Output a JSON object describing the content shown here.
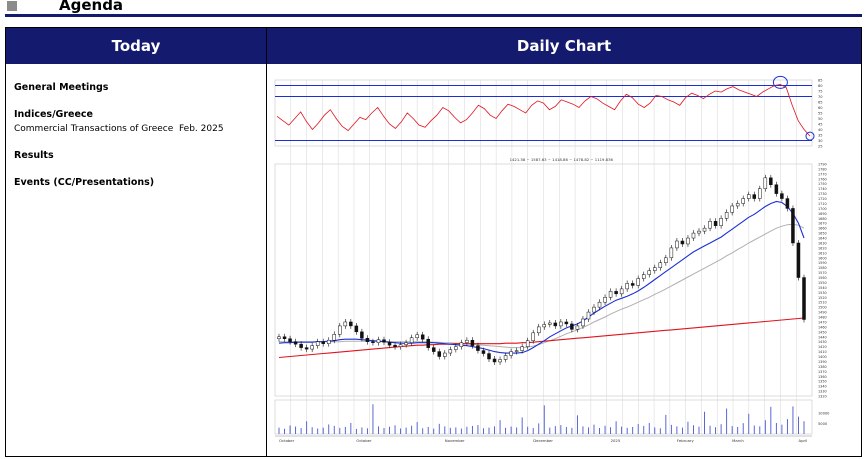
{
  "header": {
    "title": "Agenda"
  },
  "columns": {
    "left": "Today",
    "right": "Daily Chart"
  },
  "agenda": {
    "general_meetings": "General Meetings",
    "indices": "Indices/Greece",
    "indices_item": {
      "label": "Commercial Transactions of Greece",
      "date": "Feb. 2025"
    },
    "results": "Results",
    "events": "Events (CC/Presentations)"
  },
  "colors": {
    "navy": "#141a6e",
    "rsi": "#e0141e",
    "ma_short": "#1a2fd6",
    "ma_mid": "#b0b0b0",
    "ma_long": "#e0141e",
    "volume": "#4a55d0"
  },
  "chart_data": [
    {
      "type": "line",
      "panel": "rsi",
      "ylim": [
        25,
        85
      ],
      "reference_lines": [
        30,
        70,
        80
      ],
      "y_ticks": [
        85,
        80,
        75,
        70,
        65,
        60,
        55,
        50,
        45,
        40,
        35,
        30,
        25
      ],
      "series": [
        {
          "values": [
            52,
            48,
            44,
            50,
            56,
            47,
            40,
            46,
            53,
            58,
            50,
            43,
            39,
            45,
            51,
            49,
            55,
            60,
            52,
            45,
            41,
            47,
            55,
            50,
            44,
            42,
            48,
            53,
            60,
            57,
            51,
            46,
            49,
            55,
            62,
            59,
            53,
            50,
            57,
            63,
            61,
            58,
            55,
            62,
            66,
            64,
            58,
            61,
            67,
            65,
            63,
            60,
            66,
            70,
            68,
            64,
            61,
            58,
            66,
            72,
            69,
            63,
            60,
            64,
            71,
            70,
            67,
            65,
            62,
            69,
            73,
            71,
            68,
            72,
            75,
            74,
            77,
            79,
            76,
            74,
            72,
            70,
            74,
            77,
            80,
            81,
            78,
            62,
            48,
            40,
            34
          ]
        }
      ]
    },
    {
      "type": "candlestick",
      "panel": "price",
      "ylim": [
        1320,
        1790
      ],
      "legend": "1421.58 ~ 1587.63 ~ 1418.86 ~ 1478.82 ~ 1119.836",
      "x_tick_labels": [
        "October",
        "October",
        "November",
        "December",
        "2025",
        "February",
        "March",
        "April"
      ],
      "y_ticks": [
        1790,
        1780,
        1770,
        1760,
        1750,
        1740,
        1730,
        1720,
        1710,
        1700,
        1690,
        1680,
        1670,
        1660,
        1650,
        1640,
        1630,
        1620,
        1610,
        1600,
        1590,
        1580,
        1570,
        1560,
        1550,
        1540,
        1530,
        1520,
        1510,
        1500,
        1490,
        1480,
        1470,
        1460,
        1450,
        1440,
        1430,
        1420,
        1410,
        1400,
        1390,
        1380,
        1370,
        1360,
        1350,
        1340,
        1330,
        1320
      ],
      "closes": [
        1440,
        1436,
        1430,
        1425,
        1418,
        1415,
        1422,
        1430,
        1426,
        1433,
        1445,
        1462,
        1470,
        1462,
        1450,
        1437,
        1430,
        1428,
        1434,
        1429,
        1423,
        1420,
        1424,
        1428,
        1438,
        1444,
        1435,
        1418,
        1410,
        1400,
        1407,
        1414,
        1420,
        1428,
        1433,
        1422,
        1412,
        1406,
        1395,
        1389,
        1394,
        1402,
        1410,
        1412,
        1420,
        1432,
        1448,
        1460,
        1465,
        1468,
        1462,
        1470,
        1466,
        1455,
        1462,
        1476,
        1490,
        1500,
        1510,
        1520,
        1532,
        1527,
        1537,
        1548,
        1544,
        1558,
        1566,
        1574,
        1580,
        1590,
        1600,
        1620,
        1634,
        1628,
        1640,
        1650,
        1654,
        1660,
        1674,
        1665,
        1680,
        1692,
        1705,
        1710,
        1720,
        1728,
        1720,
        1740,
        1762,
        1748,
        1730,
        1720,
        1700,
        1630,
        1560,
        1475
      ],
      "ma_short": [
        1427,
        1428,
        1428,
        1429,
        1429,
        1429,
        1429,
        1430,
        1430,
        1431,
        1432,
        1434,
        1435,
        1435,
        1435,
        1434,
        1433,
        1432,
        1431,
        1430,
        1429,
        1428,
        1427,
        1427,
        1427,
        1428,
        1428,
        1428,
        1428,
        1427,
        1426,
        1425,
        1424,
        1423,
        1422,
        1420,
        1418,
        1416,
        1413,
        1410,
        1408,
        1407,
        1407,
        1407,
        1408,
        1412,
        1418,
        1425,
        1432,
        1440,
        1446,
        1452,
        1458,
        1462,
        1466,
        1472,
        1480,
        1488,
        1495,
        1502,
        1508,
        1514,
        1518,
        1522,
        1527,
        1533,
        1540,
        1548,
        1556,
        1564,
        1572,
        1580,
        1588,
        1596,
        1604,
        1612,
        1618,
        1624,
        1630,
        1636,
        1642,
        1650,
        1658,
        1666,
        1674,
        1682,
        1688,
        1696,
        1704,
        1710,
        1714,
        1712,
        1704,
        1690,
        1670,
        1640
      ],
      "ma_mid": [
        1430,
        1430,
        1430,
        1430,
        1430,
        1430,
        1430,
        1430,
        1430,
        1430,
        1430,
        1430,
        1431,
        1431,
        1431,
        1431,
        1431,
        1431,
        1431,
        1431,
        1430,
        1430,
        1430,
        1430,
        1430,
        1430,
        1430,
        1430,
        1429,
        1429,
        1428,
        1428,
        1427,
        1427,
        1426,
        1425,
        1424,
        1423,
        1422,
        1421,
        1420,
        1419,
        1418,
        1418,
        1418,
        1419,
        1421,
        1424,
        1428,
        1432,
        1436,
        1441,
        1446,
        1450,
        1454,
        1459,
        1464,
        1470,
        1475,
        1480,
        1486,
        1491,
        1496,
        1500,
        1505,
        1510,
        1515,
        1520,
        1526,
        1531,
        1537,
        1543,
        1549,
        1555,
        1561,
        1567,
        1573,
        1579,
        1585,
        1591,
        1597,
        1604,
        1610,
        1617,
        1623,
        1630,
        1636,
        1642,
        1648,
        1654,
        1660,
        1664,
        1667,
        1668,
        1666,
        1660
      ],
      "ma_long": [
        1398,
        1399,
        1400,
        1401,
        1402,
        1403,
        1404,
        1405,
        1406,
        1407,
        1408,
        1409,
        1410,
        1411,
        1412,
        1413,
        1414,
        1415,
        1416,
        1417,
        1418,
        1419,
        1420,
        1421,
        1422,
        1423,
        1423,
        1424,
        1424,
        1425,
        1425,
        1425,
        1426,
        1426,
        1426,
        1426,
        1426,
        1426,
        1426,
        1426,
        1426,
        1427,
        1427,
        1427,
        1428,
        1428,
        1429,
        1430,
        1431,
        1432,
        1433,
        1434,
        1435,
        1436,
        1437,
        1438,
        1439,
        1440,
        1441,
        1442,
        1443,
        1444,
        1445,
        1446,
        1447,
        1448,
        1449,
        1450,
        1451,
        1452,
        1453,
        1454,
        1455,
        1456,
        1457,
        1458,
        1459,
        1460,
        1461,
        1462,
        1463,
        1464,
        1465,
        1466,
        1467,
        1468,
        1469,
        1470,
        1471,
        1472,
        1473,
        1474,
        1475,
        1476,
        1477,
        1478
      ]
    },
    {
      "type": "bar",
      "panel": "volume",
      "ylim": [
        0,
        16000
      ],
      "y_ticks": [
        "10000",
        "5000"
      ],
      "values": [
        3000,
        2500,
        4000,
        3500,
        2800,
        6000,
        3200,
        2600,
        3000,
        4500,
        3800,
        2900,
        3300,
        5200,
        2400,
        3100,
        2700,
        14000,
        3600,
        2800,
        3400,
        4100,
        2600,
        3000,
        3900,
        5600,
        2700,
        3300,
        2500,
        4800,
        3600,
        2900,
        3100,
        2600,
        3400,
        3800,
        4200,
        2700,
        3000,
        3600,
        6500,
        2900,
        3500,
        3100,
        7800,
        3400,
        2800,
        5000,
        13500,
        3000,
        3700,
        4200,
        3300,
        2900,
        8800,
        3600,
        3100,
        4400,
        2800,
        3900,
        3200,
        6000,
        3500,
        2900,
        3300,
        4700,
        3800,
        5200,
        3100,
        2700,
        9000,
        4300,
        3600,
        3000,
        5800,
        4100,
        3500,
        10500,
        3900,
        3200,
        4600,
        12000,
        3700,
        3300,
        5100,
        9500,
        4000,
        3600,
        6500,
        12800,
        5200,
        4400,
        7000,
        13000,
        8200,
        6000
      ]
    }
  ]
}
